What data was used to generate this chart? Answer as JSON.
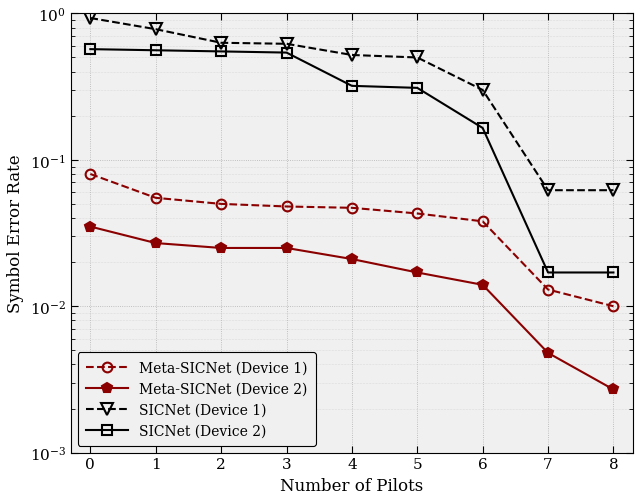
{
  "x": [
    0,
    1,
    2,
    3,
    4,
    5,
    6,
    7,
    8
  ],
  "meta_sicnet_dev1": [
    0.08,
    0.055,
    0.05,
    0.048,
    0.047,
    0.043,
    0.038,
    0.013,
    0.01
  ],
  "meta_sicnet_dev2": [
    0.035,
    0.027,
    0.025,
    0.025,
    0.021,
    0.017,
    0.014,
    0.0048,
    0.0027
  ],
  "sicnet_dev1": [
    0.93,
    0.78,
    0.63,
    0.62,
    0.52,
    0.5,
    0.3,
    0.062,
    0.062
  ],
  "sicnet_dev2": [
    0.57,
    0.56,
    0.55,
    0.54,
    0.32,
    0.31,
    0.165,
    0.017,
    0.017
  ],
  "xlabel": "Number of Pilots",
  "ylabel": "Symbol Error Rate",
  "color_meta": "#8B0000",
  "color_sicnet": "#000000",
  "bg_color": "#f0f0f0",
  "legend": [
    "Meta-SICNet (Device 1)",
    "Meta-SICNet (Device 2)",
    "SICNet (Device 1)",
    "SICNet (Device 2)"
  ]
}
